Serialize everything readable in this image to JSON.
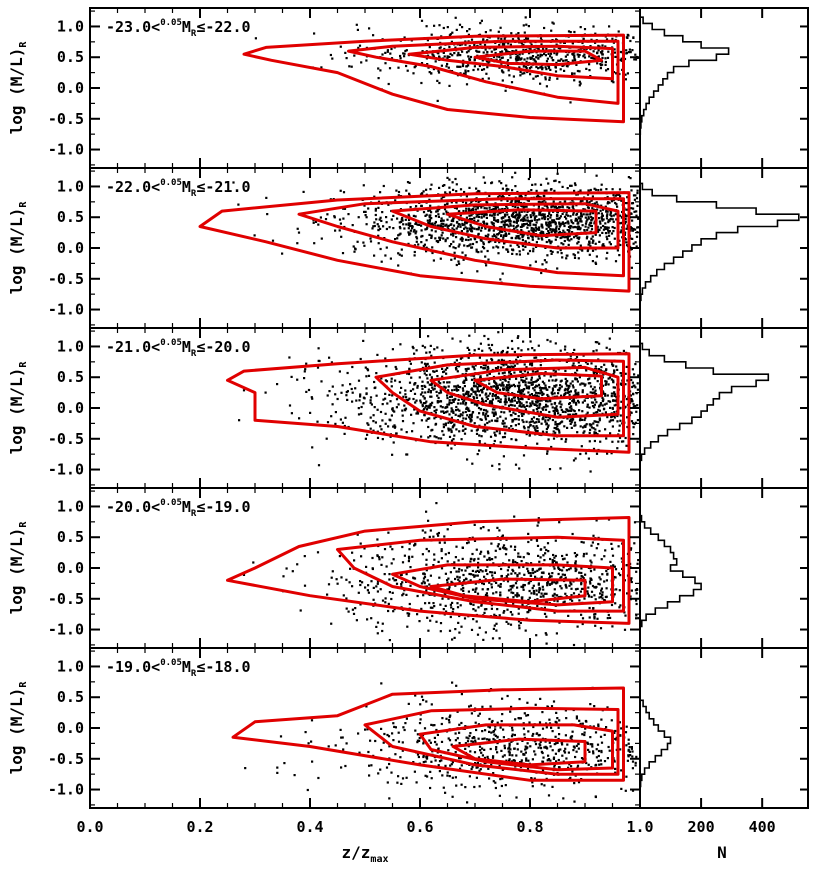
{
  "chart_data": {
    "type": "scatter",
    "description_axes": {
      "xlabel_main": "z/z",
      "xlabel_main_sub": "max",
      "xlabel_hist": "N",
      "ylabel": "log (M/L)",
      "ylabel_sub": "R"
    },
    "x_range": [
      0.0,
      1.0
    ],
    "y_range": [
      -1.3,
      1.3
    ],
    "x_ticks": [
      "0.0",
      "0.2",
      "0.4",
      "0.6",
      "0.8",
      "1.0"
    ],
    "y_ticks": [
      "1.0",
      "0.5",
      "0.0",
      "-0.5",
      "-1.0"
    ],
    "hist_range": [
      0,
      550
    ],
    "hist_ticks": [
      "1.0",
      "200",
      "400"
    ],
    "colors": {
      "points": "#000000",
      "contours": "#e00000",
      "hist": "#000000"
    },
    "panels": [
      {
        "label_pre": "-23.0<",
        "label_sup": "0.05",
        "label_mid": "M",
        "label_sub": "R",
        "label_post": "≤-22.0",
        "density": {
          "center": [
            0.8,
            0.55
          ],
          "spread": [
            0.15,
            0.22
          ],
          "xmin": 0.25,
          "count": 700
        },
        "contours": [
          [
            [
              0.28,
              0.55
            ],
            [
              0.32,
              0.66
            ],
            [
              0.5,
              0.76
            ],
            [
              0.7,
              0.84
            ],
            [
              0.97,
              0.86
            ],
            [
              0.97,
              -0.55
            ],
            [
              0.8,
              -0.48
            ],
            [
              0.65,
              -0.35
            ],
            [
              0.55,
              -0.1
            ],
            [
              0.45,
              0.25
            ],
            [
              0.33,
              0.45
            ]
          ],
          [
            [
              0.47,
              0.6
            ],
            [
              0.55,
              0.68
            ],
            [
              0.75,
              0.76
            ],
            [
              0.96,
              0.76
            ],
            [
              0.96,
              -0.25
            ],
            [
              0.85,
              -0.15
            ],
            [
              0.72,
              0.1
            ],
            [
              0.62,
              0.35
            ],
            [
              0.52,
              0.5
            ]
          ],
          [
            [
              0.58,
              0.55
            ],
            [
              0.7,
              0.66
            ],
            [
              0.85,
              0.68
            ],
            [
              0.95,
              0.64
            ],
            [
              0.95,
              0.15
            ],
            [
              0.85,
              0.2
            ],
            [
              0.75,
              0.35
            ],
            [
              0.65,
              0.45
            ]
          ],
          [
            [
              0.7,
              0.5
            ],
            [
              0.8,
              0.6
            ],
            [
              0.9,
              0.6
            ],
            [
              0.93,
              0.45
            ],
            [
              0.85,
              0.38
            ],
            [
              0.76,
              0.4
            ]
          ]
        ],
        "histogram": {
          "y": [
            1.1,
            1.0,
            0.9,
            0.8,
            0.7,
            0.6,
            0.5,
            0.4,
            0.3,
            0.2,
            0.1,
            0.0,
            -0.1,
            -0.2,
            -0.3,
            -0.4,
            -0.5,
            -0.6,
            -0.7
          ],
          "n": [
            10,
            40,
            80,
            140,
            200,
            290,
            250,
            160,
            110,
            90,
            75,
            60,
            45,
            30,
            20,
            12,
            6,
            3,
            1
          ]
        }
      },
      {
        "label_pre": "-22.0<",
        "label_sup": "0.05",
        "label_mid": "M",
        "label_sub": "R",
        "label_post": "≤-21.0",
        "density": {
          "center": [
            0.8,
            0.45
          ],
          "spread": [
            0.16,
            0.3
          ],
          "xmin": 0.18,
          "count": 1600
        },
        "contours": [
          [
            [
              0.2,
              0.35
            ],
            [
              0.24,
              0.6
            ],
            [
              0.45,
              0.78
            ],
            [
              0.7,
              0.88
            ],
            [
              0.98,
              0.9
            ],
            [
              0.98,
              -0.7
            ],
            [
              0.8,
              -0.62
            ],
            [
              0.6,
              -0.45
            ],
            [
              0.45,
              -0.2
            ],
            [
              0.32,
              0.1
            ]
          ],
          [
            [
              0.38,
              0.55
            ],
            [
              0.5,
              0.72
            ],
            [
              0.75,
              0.8
            ],
            [
              0.97,
              0.8
            ],
            [
              0.97,
              -0.45
            ],
            [
              0.85,
              -0.4
            ],
            [
              0.7,
              -0.2
            ],
            [
              0.55,
              0.1
            ],
            [
              0.45,
              0.35
            ]
          ],
          [
            [
              0.55,
              0.6
            ],
            [
              0.7,
              0.7
            ],
            [
              0.9,
              0.72
            ],
            [
              0.96,
              0.6
            ],
            [
              0.96,
              0.0
            ],
            [
              0.85,
              0.0
            ],
            [
              0.72,
              0.15
            ],
            [
              0.62,
              0.35
            ]
          ],
          [
            [
              0.65,
              0.55
            ],
            [
              0.78,
              0.62
            ],
            [
              0.92,
              0.6
            ],
            [
              0.92,
              0.25
            ],
            [
              0.82,
              0.2
            ],
            [
              0.72,
              0.35
            ]
          ]
        ],
        "histogram": {
          "y": [
            1.0,
            0.9,
            0.8,
            0.7,
            0.6,
            0.5,
            0.4,
            0.3,
            0.2,
            0.1,
            0.0,
            -0.1,
            -0.2,
            -0.3,
            -0.4,
            -0.5,
            -0.6,
            -0.7,
            -0.8
          ],
          "n": [
            8,
            40,
            120,
            250,
            380,
            520,
            450,
            320,
            250,
            200,
            170,
            140,
            110,
            80,
            55,
            35,
            18,
            8,
            3
          ]
        }
      },
      {
        "label_pre": "-21.0<",
        "label_sup": "0.05",
        "label_mid": "M",
        "label_sub": "R",
        "label_post": "≤-20.0",
        "density": {
          "center": [
            0.8,
            0.2
          ],
          "spread": [
            0.17,
            0.4
          ],
          "xmin": 0.12,
          "count": 1800
        },
        "contours": [
          [
            [
              0.25,
              0.45
            ],
            [
              0.28,
              0.6
            ],
            [
              0.45,
              0.72
            ],
            [
              0.7,
              0.86
            ],
            [
              0.98,
              0.88
            ],
            [
              0.98,
              -0.72
            ],
            [
              0.8,
              -0.65
            ],
            [
              0.62,
              -0.55
            ],
            [
              0.45,
              -0.3
            ],
            [
              0.3,
              -0.2
            ],
            [
              0.3,
              0.25
            ]
          ],
          [
            [
              0.52,
              0.5
            ],
            [
              0.65,
              0.7
            ],
            [
              0.85,
              0.78
            ],
            [
              0.97,
              0.76
            ],
            [
              0.97,
              -0.45
            ],
            [
              0.85,
              -0.45
            ],
            [
              0.7,
              -0.3
            ],
            [
              0.6,
              -0.05
            ],
            [
              0.55,
              0.25
            ]
          ],
          [
            [
              0.62,
              0.45
            ],
            [
              0.75,
              0.62
            ],
            [
              0.9,
              0.66
            ],
            [
              0.96,
              0.5
            ],
            [
              0.96,
              -0.1
            ],
            [
              0.85,
              -0.15
            ],
            [
              0.72,
              0.05
            ],
            [
              0.65,
              0.25
            ]
          ],
          [
            [
              0.7,
              0.45
            ],
            [
              0.82,
              0.56
            ],
            [
              0.93,
              0.52
            ],
            [
              0.93,
              0.2
            ],
            [
              0.82,
              0.15
            ],
            [
              0.74,
              0.25
            ]
          ]
        ],
        "histogram": {
          "y": [
            1.0,
            0.9,
            0.8,
            0.7,
            0.6,
            0.5,
            0.4,
            0.3,
            0.2,
            0.1,
            0.0,
            -0.1,
            -0.2,
            -0.3,
            -0.4,
            -0.5,
            -0.6,
            -0.7,
            -0.8
          ],
          "n": [
            8,
            30,
            80,
            150,
            240,
            420,
            380,
            300,
            260,
            240,
            220,
            200,
            170,
            130,
            90,
            60,
            35,
            15,
            5
          ]
        }
      },
      {
        "label_pre": "-20.0<",
        "label_sup": "0.05",
        "label_mid": "M",
        "label_sub": "R",
        "label_post": "≤-19.0",
        "density": {
          "center": [
            0.8,
            -0.2
          ],
          "spread": [
            0.17,
            0.4
          ],
          "xmin": 0.15,
          "count": 1000
        },
        "contours": [
          [
            [
              0.25,
              -0.2
            ],
            [
              0.3,
              0.0
            ],
            [
              0.38,
              0.35
            ],
            [
              0.5,
              0.6
            ],
            [
              0.7,
              0.75
            ],
            [
              0.98,
              0.82
            ],
            [
              0.98,
              -0.9
            ],
            [
              0.8,
              -0.85
            ],
            [
              0.6,
              -0.7
            ],
            [
              0.4,
              -0.45
            ]
          ],
          [
            [
              0.45,
              0.3
            ],
            [
              0.6,
              0.45
            ],
            [
              0.85,
              0.5
            ],
            [
              0.97,
              0.45
            ],
            [
              0.97,
              -0.7
            ],
            [
              0.85,
              -0.7
            ],
            [
              0.7,
              -0.55
            ],
            [
              0.55,
              -0.3
            ],
            [
              0.48,
              0.0
            ]
          ],
          [
            [
              0.55,
              -0.1
            ],
            [
              0.65,
              0.05
            ],
            [
              0.85,
              0.05
            ],
            [
              0.95,
              0.0
            ],
            [
              0.95,
              -0.55
            ],
            [
              0.85,
              -0.6
            ],
            [
              0.7,
              -0.5
            ],
            [
              0.6,
              -0.3
            ]
          ],
          [
            [
              0.62,
              -0.3
            ],
            [
              0.75,
              -0.18
            ],
            [
              0.9,
              -0.2
            ],
            [
              0.9,
              -0.45
            ],
            [
              0.8,
              -0.55
            ],
            [
              0.68,
              -0.45
            ]
          ]
        ],
        "histogram": {
          "y": [
            0.8,
            0.7,
            0.6,
            0.5,
            0.4,
            0.3,
            0.2,
            0.1,
            0.0,
            -0.1,
            -0.2,
            -0.3,
            -0.4,
            -0.5,
            -0.6,
            -0.7,
            -0.8,
            -0.9
          ],
          "n": [
            5,
            15,
            35,
            60,
            80,
            100,
            110,
            120,
            100,
            140,
            180,
            200,
            175,
            130,
            90,
            50,
            20,
            6
          ]
        }
      },
      {
        "label_pre": "-19.0<",
        "label_sup": "0.05",
        "label_mid": "M",
        "label_sub": "R",
        "label_post": "≤-18.0",
        "density": {
          "center": [
            0.78,
            -0.3
          ],
          "spread": [
            0.16,
            0.35
          ],
          "xmin": 0.22,
          "count": 700
        },
        "contours": [
          [
            [
              0.26,
              -0.15
            ],
            [
              0.3,
              0.1
            ],
            [
              0.45,
              0.2
            ],
            [
              0.55,
              0.55
            ],
            [
              0.75,
              0.62
            ],
            [
              0.97,
              0.65
            ],
            [
              0.97,
              -0.85
            ],
            [
              0.8,
              -0.85
            ],
            [
              0.6,
              -0.6
            ],
            [
              0.4,
              -0.3
            ]
          ],
          [
            [
              0.5,
              0.05
            ],
            [
              0.62,
              0.28
            ],
            [
              0.8,
              0.32
            ],
            [
              0.96,
              0.3
            ],
            [
              0.96,
              -0.75
            ],
            [
              0.85,
              -0.75
            ],
            [
              0.7,
              -0.6
            ],
            [
              0.55,
              -0.3
            ]
          ],
          [
            [
              0.6,
              -0.1
            ],
            [
              0.72,
              0.05
            ],
            [
              0.88,
              0.05
            ],
            [
              0.95,
              -0.05
            ],
            [
              0.95,
              -0.65
            ],
            [
              0.85,
              -0.68
            ],
            [
              0.72,
              -0.55
            ],
            [
              0.62,
              -0.35
            ]
          ],
          [
            [
              0.66,
              -0.3
            ],
            [
              0.78,
              -0.18
            ],
            [
              0.9,
              -0.22
            ],
            [
              0.9,
              -0.55
            ],
            [
              0.8,
              -0.6
            ],
            [
              0.7,
              -0.5
            ]
          ]
        ],
        "histogram": {
          "y": [
            0.4,
            0.3,
            0.2,
            0.1,
            0.0,
            -0.1,
            -0.2,
            -0.3,
            -0.4,
            -0.5,
            -0.6,
            -0.7,
            -0.8,
            -0.9
          ],
          "n": [
            10,
            20,
            30,
            45,
            60,
            80,
            100,
            90,
            70,
            50,
            30,
            15,
            6,
            2
          ]
        }
      }
    ]
  }
}
